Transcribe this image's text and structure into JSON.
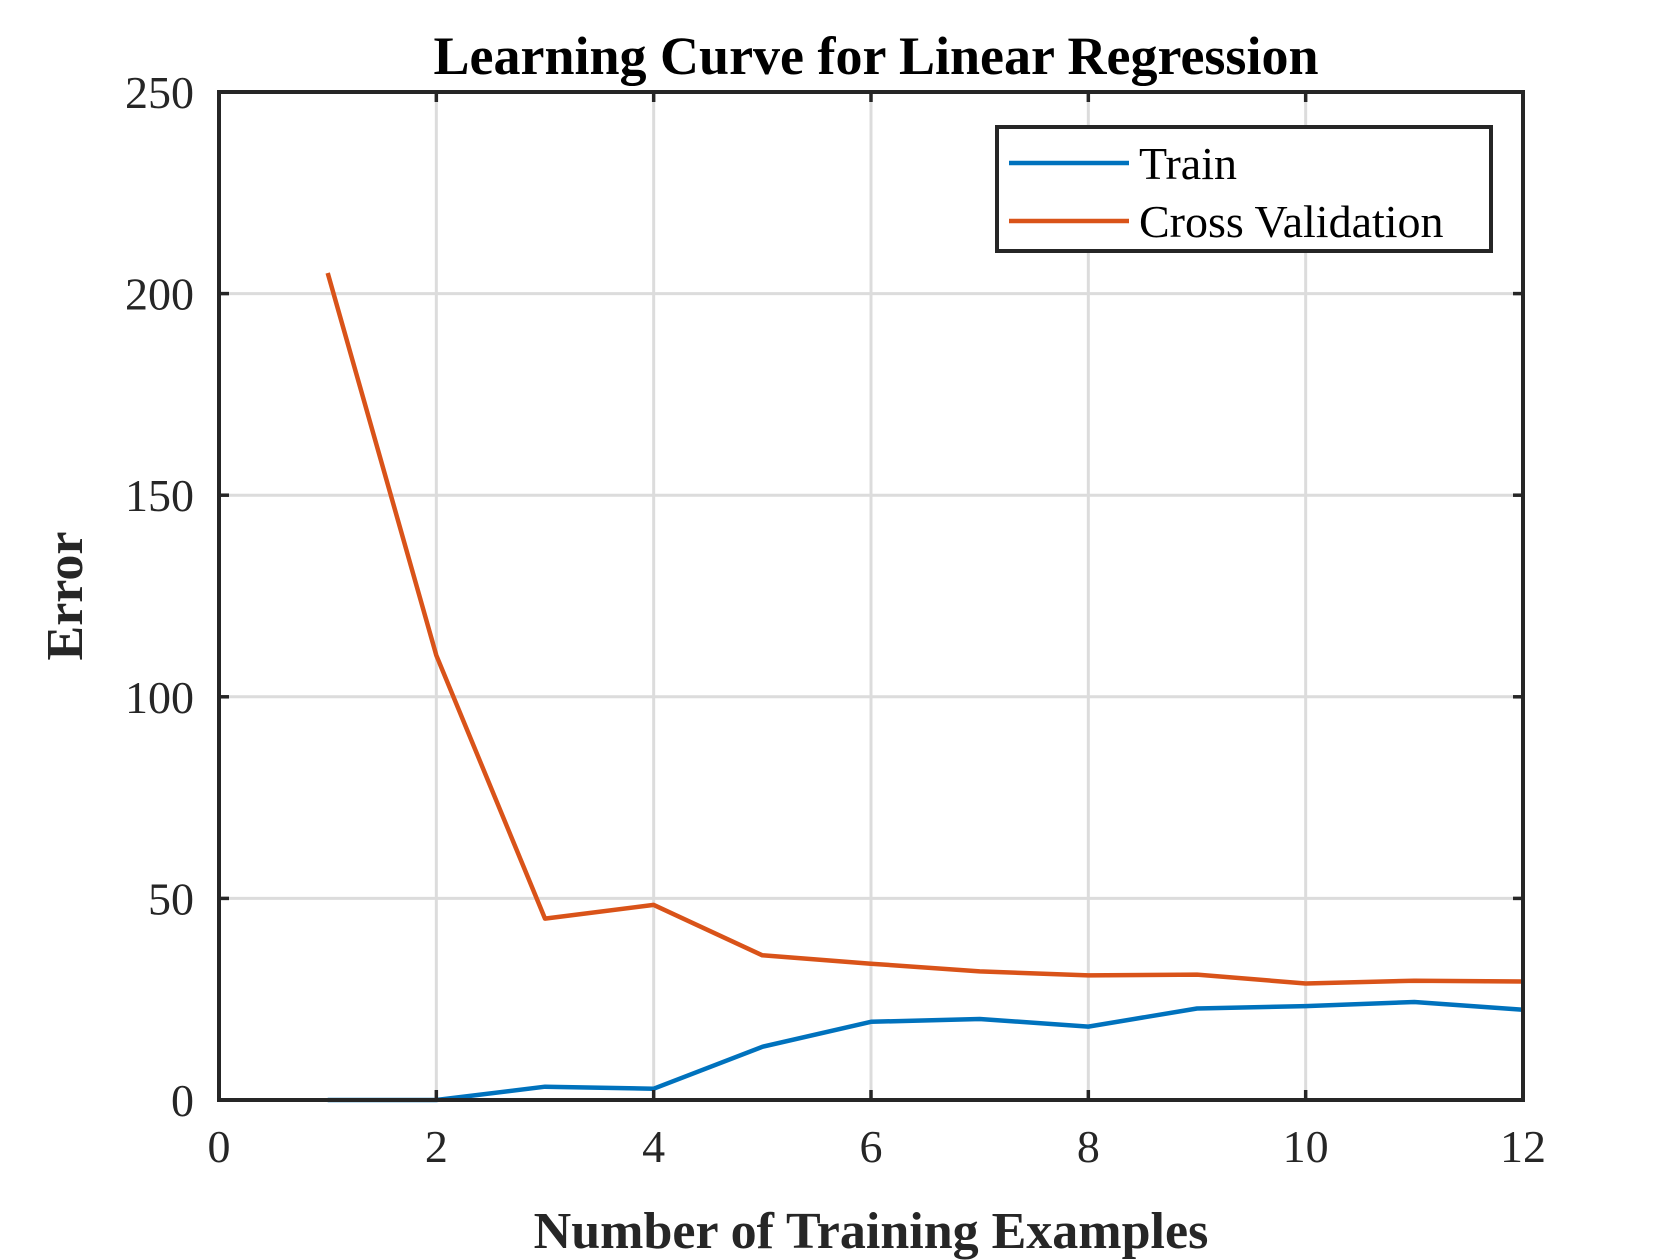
{
  "chart_data": {
    "type": "line",
    "title": "Learning Curve for Linear Regression",
    "xlabel": "Number of Training Examples",
    "ylabel": "Error",
    "xlim": [
      0,
      12
    ],
    "ylim": [
      0,
      250
    ],
    "xticks": [
      0,
      2,
      4,
      6,
      8,
      10,
      12
    ],
    "yticks": [
      0,
      50,
      100,
      150,
      200,
      250
    ],
    "grid": true,
    "legend_position": "top-right",
    "series": [
      {
        "name": "Train",
        "color": "#0072BD",
        "x": [
          1,
          2,
          3,
          4,
          5,
          6,
          7,
          8,
          9,
          10,
          11,
          12
        ],
        "y": [
          0,
          0,
          3.3,
          2.8,
          13.2,
          19.4,
          20.1,
          18.2,
          22.7,
          23.3,
          24.3,
          22.4
        ]
      },
      {
        "name": "Cross Validation",
        "color": "#D95319",
        "x": [
          1,
          2,
          3,
          4,
          5,
          6,
          7,
          8,
          9,
          10,
          11,
          12
        ],
        "y": [
          205.1,
          110.3,
          45.0,
          48.4,
          35.9,
          33.8,
          31.9,
          30.9,
          31.1,
          28.9,
          29.6,
          29.4
        ]
      }
    ]
  }
}
